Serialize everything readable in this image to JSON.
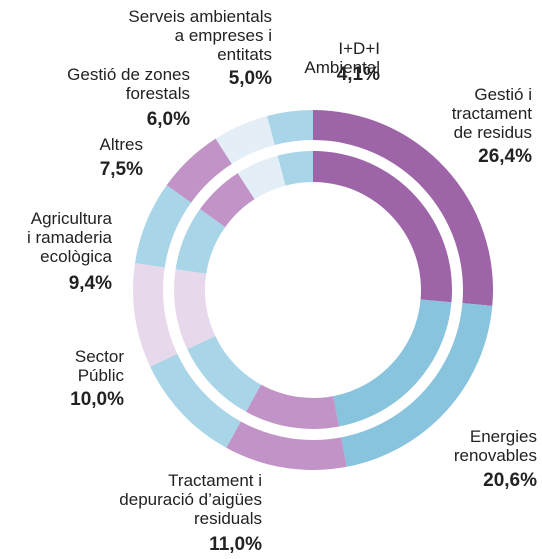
{
  "chart_data": {
    "type": "donut",
    "labels": [
      [
        "Gestió i",
        "tractament",
        "de residus"
      ],
      [
        "Energies",
        "renovables"
      ],
      [
        "Tractament i",
        "depuració d’aigües",
        "residuals"
      ],
      [
        "Sector",
        "Públic"
      ],
      [
        "Agricultura",
        "i ramaderia",
        "ecològica"
      ],
      [
        "Altres"
      ],
      [
        "Gestió de zones",
        "forestals"
      ],
      [
        "Serveis ambientals",
        "a empreses i",
        "entitats"
      ],
      [
        "I+D+I",
        "Ambiental"
      ]
    ],
    "values": [
      26.4,
      20.6,
      11.0,
      10.0,
      9.4,
      7.5,
      6.0,
      5.0,
      4.1
    ],
    "value_labels": [
      "26,4%",
      "20,6%",
      "11,0%",
      "10,0%",
      "9,4%",
      "7,5%",
      "6,0%",
      "5,0%",
      "4,1%"
    ],
    "colors": [
      "#9e64a8",
      "#89c4de",
      "#c193c6",
      "#a9d5e8",
      "#e7d8ec",
      "#a9d5e8",
      "#c193c6",
      "#e3eef6",
      "#a9d5e8"
    ]
  }
}
